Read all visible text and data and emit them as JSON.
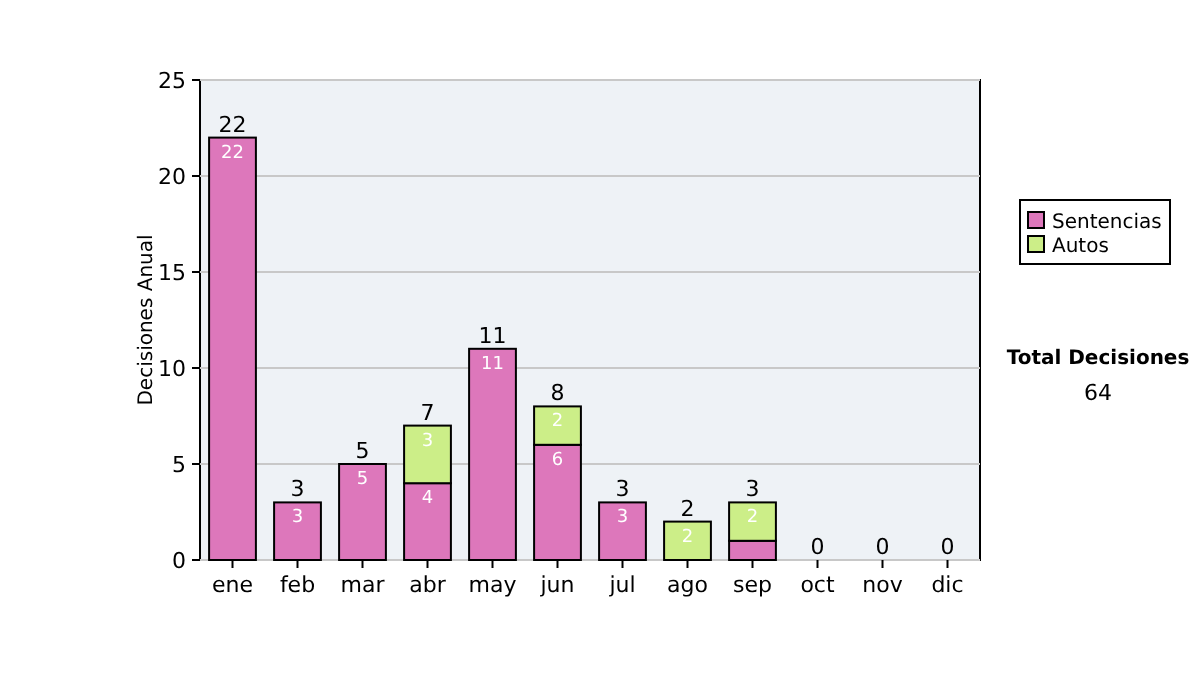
{
  "chart_data": {
    "type": "bar",
    "stacked": true,
    "ylabel": "Decisiones Anual",
    "categories": [
      "ene",
      "feb",
      "mar",
      "abr",
      "may",
      "jun",
      "jul",
      "ago",
      "sep",
      "oct",
      "nov",
      "dic"
    ],
    "series": [
      {
        "name": "Sentencias",
        "color": "#dd77bb",
        "values": [
          22,
          3,
          5,
          4,
          11,
          6,
          3,
          0,
          1,
          0,
          0,
          0
        ],
        "value_labels": [
          "22",
          "3",
          "5",
          "4",
          "11",
          "6",
          "3",
          null,
          null,
          null,
          null,
          null
        ]
      },
      {
        "name": "Autos",
        "color": "#ccee88",
        "values": [
          0,
          0,
          0,
          3,
          0,
          2,
          0,
          2,
          2,
          0,
          0,
          0
        ],
        "value_labels": [
          null,
          null,
          null,
          "3",
          null,
          "2",
          null,
          "2",
          "2",
          null,
          null,
          null
        ]
      }
    ],
    "totals": [
      "22",
      "3",
      "5",
      "7",
      "11",
      "8",
      "3",
      "2",
      "3",
      "0",
      "0",
      "0"
    ],
    "ylim": [
      0,
      25
    ],
    "yticks": [
      0,
      5,
      10,
      15,
      20,
      25
    ],
    "grid": "y",
    "legend": "right",
    "annotations": [
      "Total Decisiones",
      "64"
    ]
  }
}
